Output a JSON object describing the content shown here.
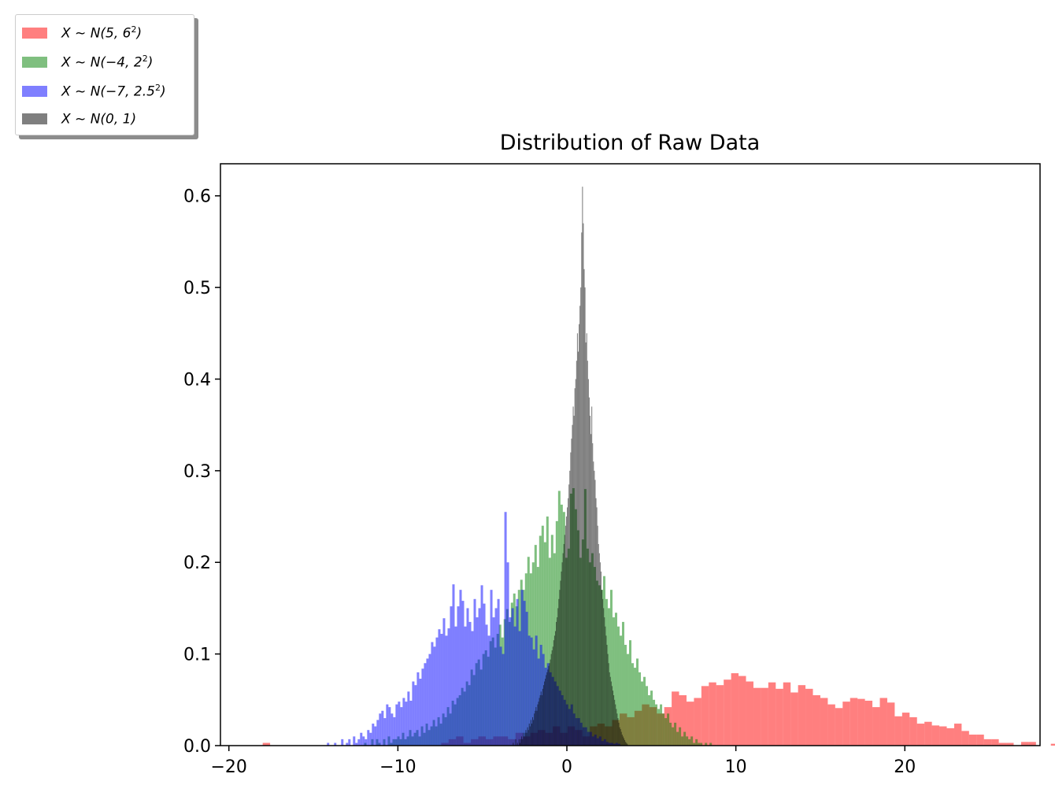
{
  "chart_data": {
    "type": "histogram",
    "title": "Distribution of Raw Data",
    "xlabel": "",
    "ylabel": "",
    "xlim": [
      -20.5,
      28
    ],
    "ylim": [
      0,
      0.635
    ],
    "xticks": [
      -20,
      -10,
      0,
      10,
      20
    ],
    "xtick_labels": [
      "−20",
      "−10",
      "0",
      "10",
      "20"
    ],
    "yticks": [
      0.0,
      0.1,
      0.2,
      0.3,
      0.4,
      0.5,
      0.6
    ],
    "ytick_labels": [
      "0.0",
      "0.1",
      "0.2",
      "0.3",
      "0.4",
      "0.5",
      "0.6"
    ],
    "grid": false,
    "legend_placement": "upper-left outside",
    "series": [
      {
        "name": "X ~ N(5, 6²)",
        "legend_label": {
          "pre": "X ~ N(5, 6",
          "sup": "2",
          "post": ")"
        },
        "color": "#ff0000",
        "alpha": 0.5,
        "bin_start": -18.0,
        "bin_width": 0.44,
        "densities": [
          0.003,
          0,
          0,
          0,
          0,
          0,
          0,
          0,
          0,
          0,
          0,
          0,
          0,
          0,
          0,
          0,
          0,
          0,
          0,
          0,
          0,
          0,
          0,
          0,
          0.003,
          0.007,
          0.01,
          0.003,
          0.007,
          0.01,
          0.007,
          0.01,
          0.01,
          0.007,
          0.014,
          0.01,
          0.014,
          0.017,
          0.014,
          0.021,
          0.014,
          0.021,
          0.017,
          0.01,
          0.021,
          0.024,
          0.021,
          0.028,
          0.035,
          0.031,
          0.038,
          0.045,
          0.042,
          0.035,
          0.042,
          0.059,
          0.055,
          0.048,
          0.052,
          0.065,
          0.069,
          0.066,
          0.072,
          0.079,
          0.076,
          0.07,
          0.063,
          0.063,
          0.069,
          0.062,
          0.069,
          0.058,
          0.066,
          0.062,
          0.055,
          0.052,
          0.045,
          0.041,
          0.048,
          0.052,
          0.051,
          0.049,
          0.042,
          0.052,
          0.047,
          0.032,
          0.036,
          0.031,
          0.024,
          0.026,
          0.022,
          0.021,
          0.019,
          0.024,
          0.016,
          0.012,
          0.012,
          0.007,
          0.007,
          0.003,
          0.003,
          0,
          0.004,
          0.004,
          0,
          0,
          0.002,
          0,
          0,
          0.002,
          0,
          0,
          0,
          0,
          0,
          0,
          0,
          0,
          0,
          0,
          0,
          0,
          0,
          0,
          0,
          0,
          0.002
        ]
      },
      {
        "name": "X ~ N(−4, 2²)",
        "legend_label": {
          "pre": "X ~ N(−4, 2",
          "sup": "2",
          "post": ")"
        },
        "color": "#008000",
        "alpha": 0.5,
        "bin_start": -12.0,
        "bin_width": 0.14,
        "densities": [
          0.003,
          0,
          0,
          0.007,
          0,
          0.007,
          0.003,
          0,
          0.007,
          0,
          0.01,
          0.003,
          0.007,
          0.007,
          0.01,
          0.007,
          0.014,
          0.007,
          0.01,
          0.017,
          0.01,
          0.014,
          0.017,
          0.01,
          0.021,
          0.014,
          0.024,
          0.017,
          0.021,
          0.028,
          0.021,
          0.031,
          0.024,
          0.035,
          0.031,
          0.042,
          0.035,
          0.049,
          0.045,
          0.052,
          0.055,
          0.063,
          0.059,
          0.07,
          0.066,
          0.083,
          0.077,
          0.09,
          0.094,
          0.083,
          0.1,
          0.104,
          0.097,
          0.114,
          0.118,
          0.107,
          0.122,
          0.132,
          0.118,
          0.138,
          0.149,
          0.135,
          0.156,
          0.166,
          0.152,
          0.17,
          0.181,
          0.17,
          0.188,
          0.206,
          0.188,
          0.2,
          0.219,
          0.195,
          0.229,
          0.24,
          0.222,
          0.25,
          0.205,
          0.23,
          0.21,
          0.245,
          0.278,
          0.263,
          0.255,
          0.205,
          0.215,
          0.275,
          0.281,
          0.258,
          0.235,
          0.205,
          0.225,
          0.28,
          0.215,
          0.2,
          0.21,
          0.195,
          0.18,
          0.175,
          0.17,
          0.185,
          0.16,
          0.15,
          0.17,
          0.14,
          0.145,
          0.13,
          0.12,
          0.135,
          0.11,
          0.1,
          0.115,
          0.09,
          0.085,
          0.095,
          0.08,
          0.07,
          0.075,
          0.065,
          0.055,
          0.06,
          0.05,
          0.045,
          0.04,
          0.045,
          0.035,
          0.03,
          0.035,
          0.025,
          0.02,
          0.025,
          0.015,
          0.02,
          0.01,
          0.015,
          0.01,
          0.007,
          0.01,
          0.003,
          0.007,
          0.003,
          0.003,
          0,
          0.003,
          0,
          0.003
        ]
      },
      {
        "name": "X ~ N(−7, 2.5²)",
        "legend_label": {
          "pre": "X ~ N(−7, 2.5",
          "sup": "2",
          "post": ")"
        },
        "color": "#0000ff",
        "alpha": 0.5,
        "bin_start": -14.2,
        "bin_width": 0.14,
        "densities": [
          0.003,
          0,
          0,
          0.003,
          0,
          0,
          0.007,
          0,
          0.003,
          0.007,
          0,
          0.01,
          0.003,
          0.007,
          0.014,
          0.01,
          0.007,
          0.017,
          0.014,
          0.024,
          0.021,
          0.028,
          0.035,
          0.038,
          0.03,
          0.045,
          0.042,
          0.035,
          0.031,
          0.045,
          0.048,
          0.042,
          0.052,
          0.048,
          0.059,
          0.049,
          0.07,
          0.066,
          0.08,
          0.073,
          0.084,
          0.09,
          0.095,
          0.1,
          0.113,
          0.108,
          0.118,
          0.127,
          0.122,
          0.139,
          0.12,
          0.128,
          0.152,
          0.176,
          0.13,
          0.152,
          0.17,
          0.158,
          0.13,
          0.15,
          0.135,
          0.125,
          0.16,
          0.14,
          0.15,
          0.175,
          0.155,
          0.132,
          0.12,
          0.17,
          0.14,
          0.15,
          0.16,
          0.108,
          0.1,
          0.255,
          0.2,
          0.14,
          0.15,
          0.13,
          0.16,
          0.125,
          0.17,
          0.158,
          0.146,
          0.12,
          0.118,
          0.105,
          0.12,
          0.095,
          0.11,
          0.1,
          0.085,
          0.09,
          0.08,
          0.075,
          0.07,
          0.065,
          0.06,
          0.055,
          0.05,
          0.045,
          0.04,
          0.045,
          0.035,
          0.03,
          0.03,
          0.025,
          0.02,
          0.02,
          0.015,
          0.015,
          0.01,
          0.012,
          0.008,
          0.01,
          0.005,
          0.007,
          0.004,
          0.003,
          0.003,
          0.002,
          0.003,
          0.002
        ]
      },
      {
        "name": "X ~ N(0, 1)",
        "legend_label": {
          "pre": "X ~ N(0, 1)",
          "sup": "",
          "post": ""
        },
        "color": "#000000",
        "alpha": 0.5,
        "bin_start": -3.2,
        "bin_width": 0.05,
        "densities": [
          0.003,
          0,
          0,
          0.007,
          0,
          0.003,
          0,
          0.007,
          0.003,
          0.007,
          0.01,
          0.007,
          0.014,
          0.01,
          0.014,
          0.017,
          0.014,
          0.02,
          0.017,
          0.024,
          0.021,
          0.028,
          0.024,
          0.031,
          0.028,
          0.035,
          0.038,
          0.042,
          0.038,
          0.045,
          0.048,
          0.052,
          0.055,
          0.059,
          0.055,
          0.062,
          0.066,
          0.07,
          0.073,
          0.077,
          0.08,
          0.083,
          0.087,
          0.09,
          0.094,
          0.1,
          0.104,
          0.108,
          0.115,
          0.12,
          0.125,
          0.135,
          0.14,
          0.15,
          0.16,
          0.17,
          0.18,
          0.19,
          0.2,
          0.21,
          0.22,
          0.23,
          0.24,
          0.25,
          0.26,
          0.27,
          0.285,
          0.3,
          0.32,
          0.335,
          0.35,
          0.37,
          0.36,
          0.39,
          0.4,
          0.42,
          0.45,
          0.43,
          0.46,
          0.48,
          0.5,
          0.56,
          0.61,
          0.57,
          0.52,
          0.5,
          0.44,
          0.45,
          0.42,
          0.4,
          0.38,
          0.36,
          0.34,
          0.37,
          0.33,
          0.31,
          0.3,
          0.29,
          0.27,
          0.26,
          0.24,
          0.22,
          0.21,
          0.2,
          0.19,
          0.17,
          0.16,
          0.15,
          0.14,
          0.13,
          0.12,
          0.11,
          0.1,
          0.09,
          0.08,
          0.075,
          0.07,
          0.065,
          0.06,
          0.055,
          0.05,
          0.045,
          0.04,
          0.035,
          0.03,
          0.025,
          0.02,
          0.018,
          0.015,
          0.012,
          0.01,
          0.008,
          0.006,
          0.004,
          0.003,
          0.002
        ]
      }
    ]
  }
}
